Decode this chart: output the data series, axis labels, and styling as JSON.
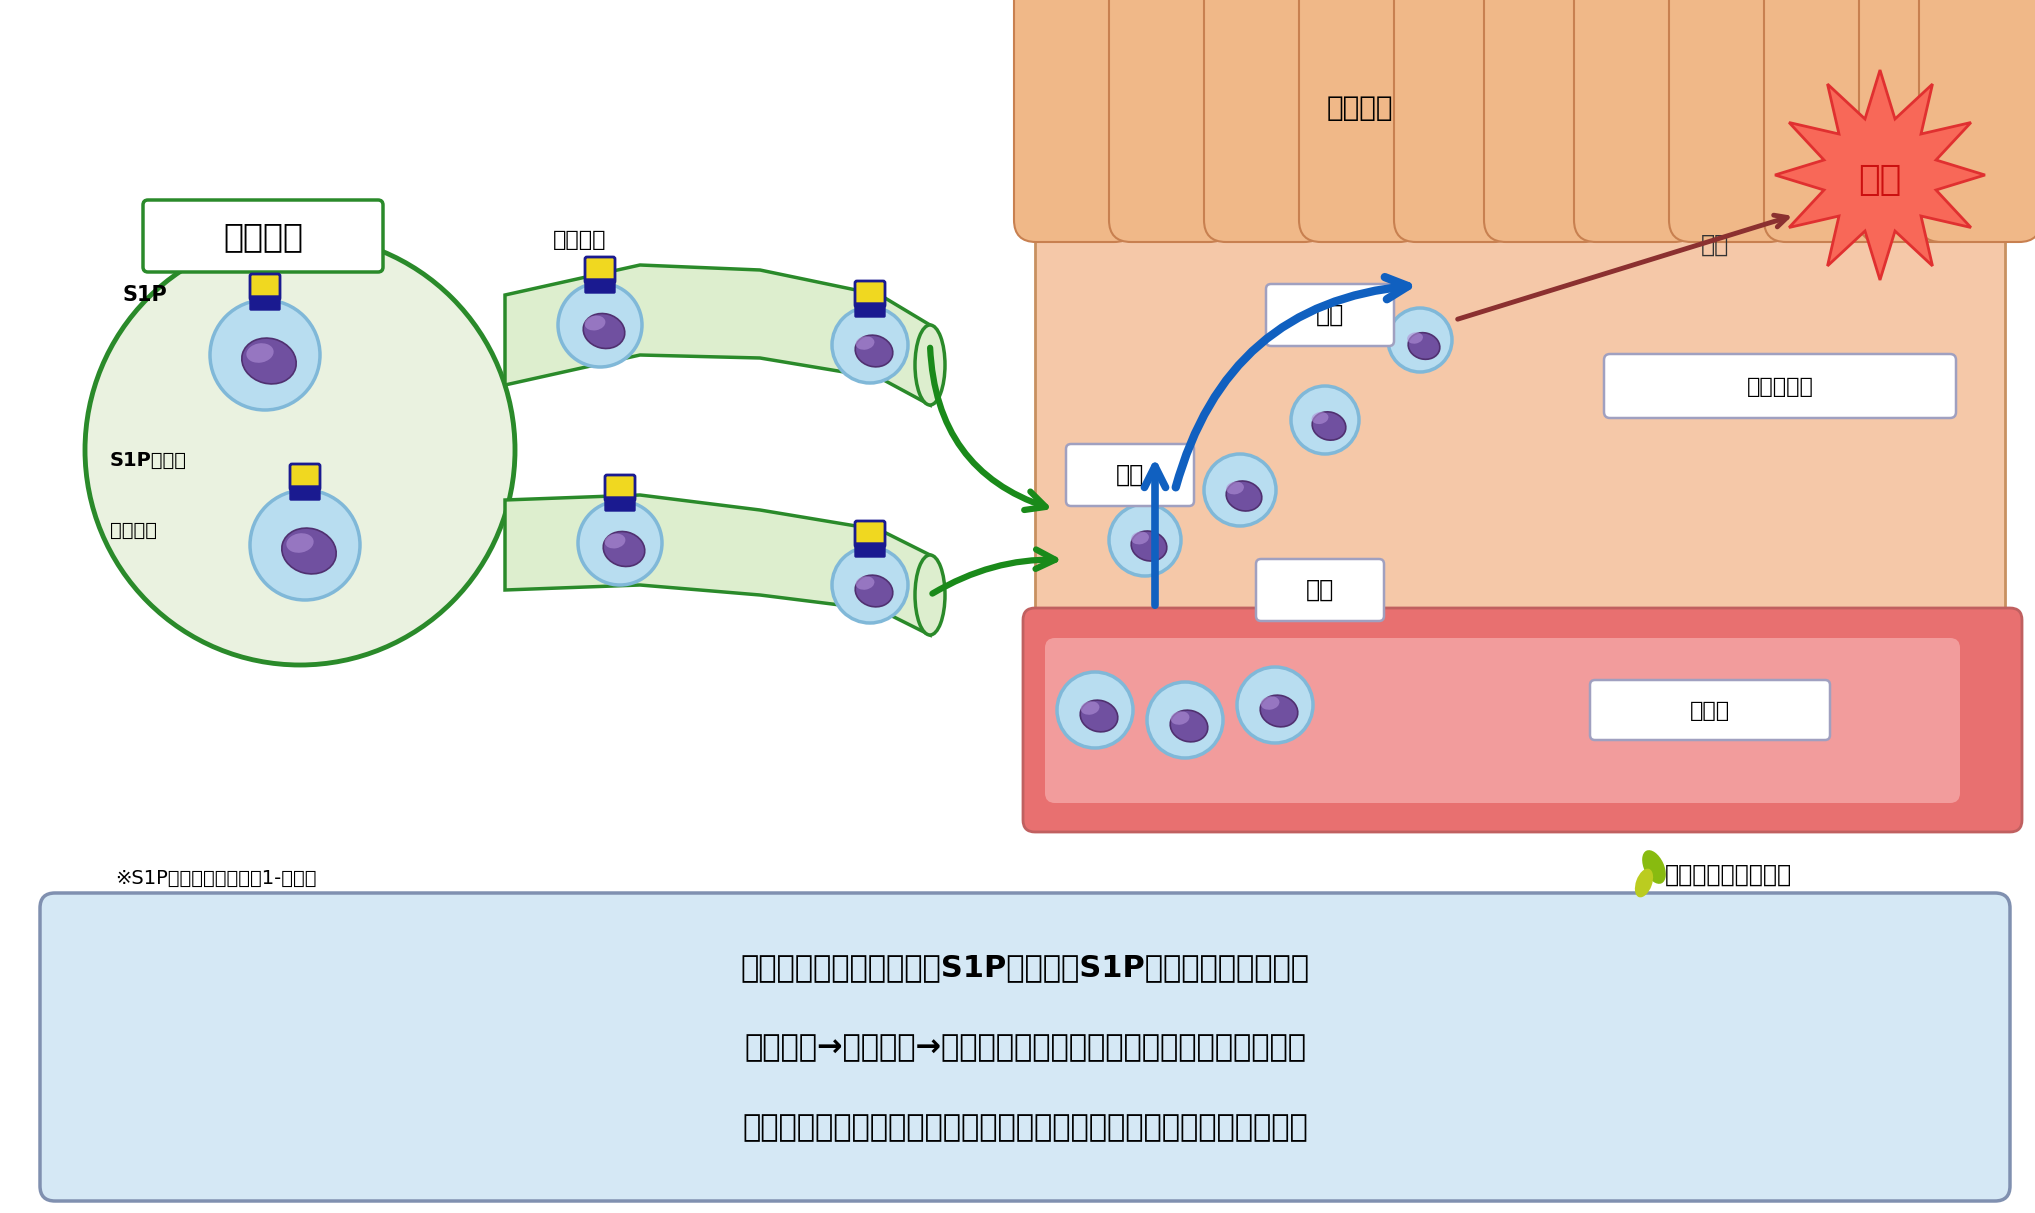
{
  "bg_color": "#ffffff",
  "lymph_node_label": "リンパ節",
  "lymph_vessel_label": "リンパ管",
  "colon_mucosa_label": "大腸粘膜",
  "colon_tissue_label": "大腸組織内",
  "blood_vessel_label": "血管内",
  "s1p_label": "S1P",
  "s1p_receptor_label": "S1P受容体",
  "lymphocyte_label": "リンパ球",
  "attack_label": "攻撃",
  "inflammation_label": "炎症",
  "migration_label": "遊走",
  "infiltration_label": "浸潤",
  "adhesion_label": "接着",
  "footnote": "※S1P：スフィンゴシン1-リン酸",
  "brand_name": "新薬情報オンライン",
  "caption_line1": "リンパ球に発現しているS1P受容体にS1Pが結合することで、",
  "caption_line2": "リンパ節→リンパ管→血管内へのリンパ球の輸送が行われている。",
  "caption_line3": "血管内のリンパ球は、大腸の炎症部位に遊走し、炎症を引き起こす。",
  "lymph_node_fill": "#eaf2e0",
  "lymph_node_edge": "#2a8a2a",
  "lymph_vessel_fill": "#ddeece",
  "lymph_vessel_edge": "#2a8a2a",
  "colon_fill": "#f5c8a8",
  "colon_edge": "#c89060",
  "villi_fill": "#f0b888",
  "villi_edge": "#c88050",
  "blood_vessel_outer": "#e87070",
  "blood_vessel_inner": "#f5a8a8",
  "lymphocyte_fill": "#b8ddf0",
  "lymphocyte_edge": "#80b8d8",
  "nucleus_fill": "#7050a0",
  "nucleus_edge": "#503070",
  "receptor_yellow": "#f0d820",
  "receptor_blue": "#1a1a90",
  "arrow_green": "#1a8a1a",
  "arrow_blue": "#1060c0",
  "star_fill": "#f86858",
  "star_edge": "#e03030",
  "inflammation_color": "#cc1010",
  "attack_color": "#333333",
  "box_fill": "#ffffff",
  "box_edge": "#909090",
  "label_edge": "#a0a0c0",
  "caption_fill": "#d5e8f5",
  "caption_edge": "#8090b0",
  "dark_arrow_fill": "#804040"
}
